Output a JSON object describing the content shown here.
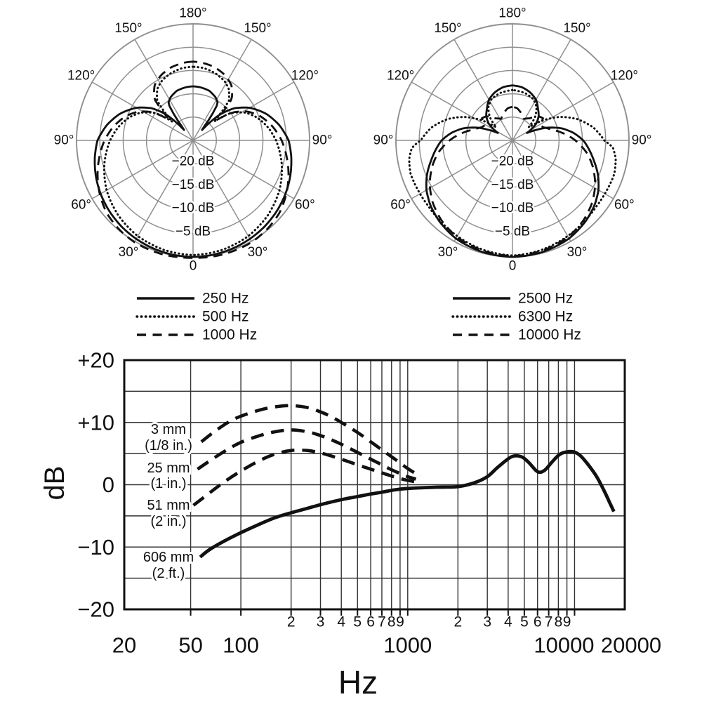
{
  "figure": {
    "background": "#ffffff",
    "ink": "#111111",
    "polar_grid_color": "#8f8f8f",
    "fr_grid_color": "#333333"
  },
  "labels": {
    "fr_y_title": "dB",
    "fr_x_title": "Hz"
  },
  "chart_data": [
    {
      "id": "polar-left",
      "type": "polar",
      "zero_direction": "down",
      "db_min": -25,
      "radial_rings_db": [
        -20,
        -15,
        -10,
        -5,
        0
      ],
      "ring_labels": [
        "−20 dB",
        "−15 dB",
        "−10 dB",
        "−5 dB"
      ],
      "angle_labels": [
        "0",
        "30°",
        "60°",
        "90°",
        "120°",
        "150°",
        "180°"
      ],
      "legend": [
        {
          "label": "250 Hz",
          "style": "solid"
        },
        {
          "label": "500 Hz",
          "style": "dotted"
        },
        {
          "label": "1000 Hz",
          "style": "dashed"
        }
      ],
      "series": [
        {
          "name": "250 Hz",
          "style": "solid",
          "points_deg_db": [
            [
              0,
              0
            ],
            [
              10,
              -0.1
            ],
            [
              20,
              -0.3
            ],
            [
              30,
              -0.6
            ],
            [
              40,
              -1.0
            ],
            [
              50,
              -1.5
            ],
            [
              60,
              -2.1
            ],
            [
              70,
              -2.8
            ],
            [
              80,
              -3.6
            ],
            [
              90,
              -4.5
            ],
            [
              100,
              -6.2
            ],
            [
              110,
              -8.3
            ],
            [
              120,
              -11.0
            ],
            [
              128,
              -13.8
            ],
            [
              134,
              -17.0
            ],
            [
              140,
              -22.5
            ],
            [
              146,
              -15.5
            ],
            [
              152,
              -14.6
            ],
            [
              162,
              -13.8
            ],
            [
              172,
              -13.5
            ],
            [
              180,
              -13.4
            ]
          ]
        },
        {
          "name": "500 Hz",
          "style": "dotted",
          "points_deg_db": [
            [
              0,
              -0.4
            ],
            [
              15,
              -0.7
            ],
            [
              30,
              -1.3
            ],
            [
              45,
              -2.3
            ],
            [
              60,
              -3.6
            ],
            [
              75,
              -5.3
            ],
            [
              90,
              -7.2
            ],
            [
              100,
              -8.7
            ],
            [
              110,
              -10.5
            ],
            [
              118,
              -12.3
            ],
            [
              126,
              -15.0
            ],
            [
              132,
              -19.0
            ],
            [
              138,
              -13.5
            ],
            [
              145,
              -11.6
            ],
            [
              152,
              -10.6
            ],
            [
              162,
              -9.8
            ],
            [
              172,
              -9.3
            ],
            [
              180,
              -9.2
            ]
          ]
        },
        {
          "name": "1000 Hz",
          "style": "dashed",
          "points_deg_db": [
            [
              0,
              0.2
            ],
            [
              15,
              0.3
            ],
            [
              30,
              0.2
            ],
            [
              40,
              -0.2
            ],
            [
              50,
              -0.8
            ],
            [
              60,
              -1.9
            ],
            [
              70,
              -3.2
            ],
            [
              80,
              -4.6
            ],
            [
              90,
              -6.0
            ],
            [
              100,
              -7.7
            ],
            [
              110,
              -9.7
            ],
            [
              118,
              -11.8
            ],
            [
              125,
              -14.5
            ],
            [
              131,
              -18.5
            ],
            [
              137,
              -12.8
            ],
            [
              145,
              -10.6
            ],
            [
              154,
              -9.4
            ],
            [
              164,
              -8.6
            ],
            [
              174,
              -8.2
            ],
            [
              180,
              -8.1
            ]
          ]
        }
      ]
    },
    {
      "id": "polar-right",
      "type": "polar",
      "zero_direction": "down",
      "db_min": -25,
      "radial_rings_db": [
        -20,
        -15,
        -10,
        -5,
        0
      ],
      "ring_labels": [
        "−20 dB",
        "−15 dB",
        "−10 dB",
        "−5 dB"
      ],
      "angle_labels": [
        "0",
        "30°",
        "60°",
        "90°",
        "120°",
        "150°",
        "180°"
      ],
      "legend": [
        {
          "label": "2500 Hz",
          "style": "solid"
        },
        {
          "label": "6300 Hz",
          "style": "dotted"
        },
        {
          "label": "10000 Hz",
          "style": "dashed"
        }
      ],
      "series": [
        {
          "name": "2500 Hz",
          "style": "solid",
          "points_deg_db": [
            [
              0,
              0
            ],
            [
              15,
              -0.2
            ],
            [
              30,
              -0.7
            ],
            [
              42,
              -1.6
            ],
            [
              52,
              -2.6
            ],
            [
              60,
              -3.7
            ],
            [
              68,
              -5.2
            ],
            [
              76,
              -7.0
            ],
            [
              84,
              -8.6
            ],
            [
              90,
              -9.8
            ],
            [
              97,
              -11.8
            ],
            [
              104,
              -14.2
            ],
            [
              111,
              -17.5
            ],
            [
              117,
              -21.5
            ],
            [
              125,
              -18.8
            ],
            [
              133,
              -17.3
            ],
            [
              141,
              -16.3
            ],
            [
              150,
              -14.9
            ],
            [
              160,
              -14.0
            ],
            [
              170,
              -13.4
            ],
            [
              180,
              -13.2
            ]
          ]
        },
        {
          "name": "6300 Hz",
          "style": "dotted",
          "points_deg_db": [
            [
              0,
              -0.3
            ],
            [
              15,
              -0.7
            ],
            [
              30,
              -1.3
            ],
            [
              42,
              -1.8
            ],
            [
              52,
              -2.1
            ],
            [
              62,
              -2.1
            ],
            [
              72,
              -2.0
            ],
            [
              80,
              -2.5
            ],
            [
              86,
              -3.4
            ],
            [
              90,
              -5.3
            ],
            [
              99,
              -7.4
            ],
            [
              108,
              -10.3
            ],
            [
              116,
              -13.5
            ],
            [
              123,
              -17.0
            ],
            [
              129,
              -20.5
            ],
            [
              136,
              -18.0
            ],
            [
              144,
              -16.2
            ],
            [
              153,
              -15.1
            ],
            [
              165,
              -14.5
            ],
            [
              180,
              -14.2
            ]
          ]
        },
        {
          "name": "10000 Hz",
          "style": "dashed",
          "points_deg_db": [
            [
              0,
              -0.2
            ],
            [
              15,
              -0.5
            ],
            [
              30,
              -1.1
            ],
            [
              42,
              -2.1
            ],
            [
              52,
              -3.3
            ],
            [
              62,
              -4.9
            ],
            [
              72,
              -6.9
            ],
            [
              80,
              -8.7
            ],
            [
              90,
              -11.5
            ],
            [
              98,
              -14.0
            ],
            [
              106,
              -16.5
            ],
            [
              113,
              -17.8
            ],
            [
              119,
              -18.3
            ],
            [
              126,
              -16.9
            ],
            [
              133,
              -17.4
            ],
            [
              142,
              -19.0
            ],
            [
              152,
              -19.8
            ],
            [
              163,
              -18.8
            ],
            [
              172,
              -18.0
            ],
            [
              180,
              -17.8
            ]
          ]
        }
      ]
    },
    {
      "id": "frequency-response",
      "type": "line",
      "x_axis": {
        "unit": "Hz",
        "scale": "log",
        "min": 20,
        "max": 20000,
        "major_ticks": [
          20,
          50,
          100,
          1000,
          10000,
          20000
        ],
        "major_tick_labels": [
          "20",
          "50",
          "100",
          "1000",
          "10000",
          "20000"
        ],
        "minor_digit_labels": [
          "2",
          "3",
          "4",
          "5",
          "6",
          "7",
          "8",
          "9"
        ],
        "gridline_freqs": [
          50,
          100,
          200,
          300,
          400,
          500,
          600,
          700,
          800,
          900,
          1000,
          2000,
          3000,
          4000,
          5000,
          6000,
          7000,
          8000,
          9000,
          10000
        ]
      },
      "y_axis": {
        "unit": "dB",
        "min": -20,
        "max": 20,
        "grid_step": 5,
        "tick_values": [
          20,
          10,
          0,
          -10,
          -20
        ],
        "tick_labels": [
          "+20",
          "+10",
          "0",
          "−10",
          "−20"
        ]
      },
      "series": [
        {
          "name": "3 mm (1/8 in.)",
          "annotation_lines": [
            "3 mm",
            "(1/8 in.)"
          ],
          "style": "dashed",
          "points_hz_db": [
            [
              58,
              6.9
            ],
            [
              70,
              8.6
            ],
            [
              85,
              10.1
            ],
            [
              100,
              11.0
            ],
            [
              130,
              12.0
            ],
            [
              160,
              12.5
            ],
            [
              200,
              12.7
            ],
            [
              250,
              12.4
            ],
            [
              300,
              11.7
            ],
            [
              350,
              10.9
            ],
            [
              400,
              10.0
            ],
            [
              500,
              8.4
            ],
            [
              600,
              6.9
            ],
            [
              700,
              5.6
            ],
            [
              800,
              4.5
            ],
            [
              900,
              3.5
            ],
            [
              1000,
              2.6
            ],
            [
              1100,
              1.9
            ],
            [
              1200,
              1.4
            ]
          ]
        },
        {
          "name": "25 mm (1 in.)",
          "annotation_lines": [
            "25 mm",
            "(1 in.)"
          ],
          "style": "dashed",
          "points_hz_db": [
            [
              55,
              2.5
            ],
            [
              70,
              4.4
            ],
            [
              85,
              5.8
            ],
            [
              100,
              6.8
            ],
            [
              130,
              7.9
            ],
            [
              160,
              8.5
            ],
            [
              200,
              8.8
            ],
            [
              250,
              8.5
            ],
            [
              300,
              7.9
            ],
            [
              350,
              7.2
            ],
            [
              400,
              6.5
            ],
            [
              500,
              5.2
            ],
            [
              600,
              4.1
            ],
            [
              700,
              3.2
            ],
            [
              800,
              2.4
            ],
            [
              900,
              1.8
            ],
            [
              1000,
              1.3
            ],
            [
              1120,
              0.9
            ]
          ]
        },
        {
          "name": "51 mm (2 in.)",
          "annotation_lines": [
            "51 mm",
            "(2 in.)"
          ],
          "style": "dashed",
          "points_hz_db": [
            [
              52,
              -3.3
            ],
            [
              65,
              -1.3
            ],
            [
              80,
              0.5
            ],
            [
              100,
              2.2
            ],
            [
              130,
              3.9
            ],
            [
              160,
              4.9
            ],
            [
              200,
              5.5
            ],
            [
              250,
              5.5
            ],
            [
              300,
              5.1
            ],
            [
              350,
              4.6
            ],
            [
              400,
              4.1
            ],
            [
              500,
              3.2
            ],
            [
              600,
              2.5
            ],
            [
              700,
              1.9
            ],
            [
              800,
              1.4
            ],
            [
              900,
              1.0
            ],
            [
              1000,
              0.7
            ],
            [
              1100,
              0.5
            ]
          ]
        },
        {
          "name": "606 mm (2 ft.)",
          "annotation_lines": [
            "606 mm",
            "(2 ft.)"
          ],
          "style": "solid",
          "points_hz_db": [
            [
              57,
              -11.6
            ],
            [
              65,
              -10.4
            ],
            [
              80,
              -9.0
            ],
            [
              100,
              -7.7
            ],
            [
              130,
              -6.3
            ],
            [
              160,
              -5.3
            ],
            [
              200,
              -4.5
            ],
            [
              250,
              -3.8
            ],
            [
              300,
              -3.2
            ],
            [
              400,
              -2.4
            ],
            [
              500,
              -1.9
            ],
            [
              600,
              -1.5
            ],
            [
              700,
              -1.2
            ],
            [
              800,
              -0.9
            ],
            [
              900,
              -0.7
            ],
            [
              1000,
              -0.6
            ],
            [
              1200,
              -0.5
            ],
            [
              1500,
              -0.4
            ],
            [
              2000,
              -0.3
            ],
            [
              2500,
              0.3
            ],
            [
              3000,
              1.3
            ],
            [
              3500,
              2.9
            ],
            [
              4200,
              4.5
            ],
            [
              4800,
              4.5
            ],
            [
              5300,
              3.6
            ],
            [
              6000,
              2.1
            ],
            [
              6600,
              2.3
            ],
            [
              7300,
              3.6
            ],
            [
              8000,
              4.7
            ],
            [
              8700,
              5.2
            ],
            [
              9800,
              5.3
            ],
            [
              10800,
              4.7
            ],
            [
              12000,
              3.3
            ],
            [
              13500,
              1.4
            ],
            [
              15000,
              -0.9
            ],
            [
              16200,
              -2.8
            ],
            [
              17200,
              -4.3
            ]
          ]
        }
      ]
    }
  ]
}
